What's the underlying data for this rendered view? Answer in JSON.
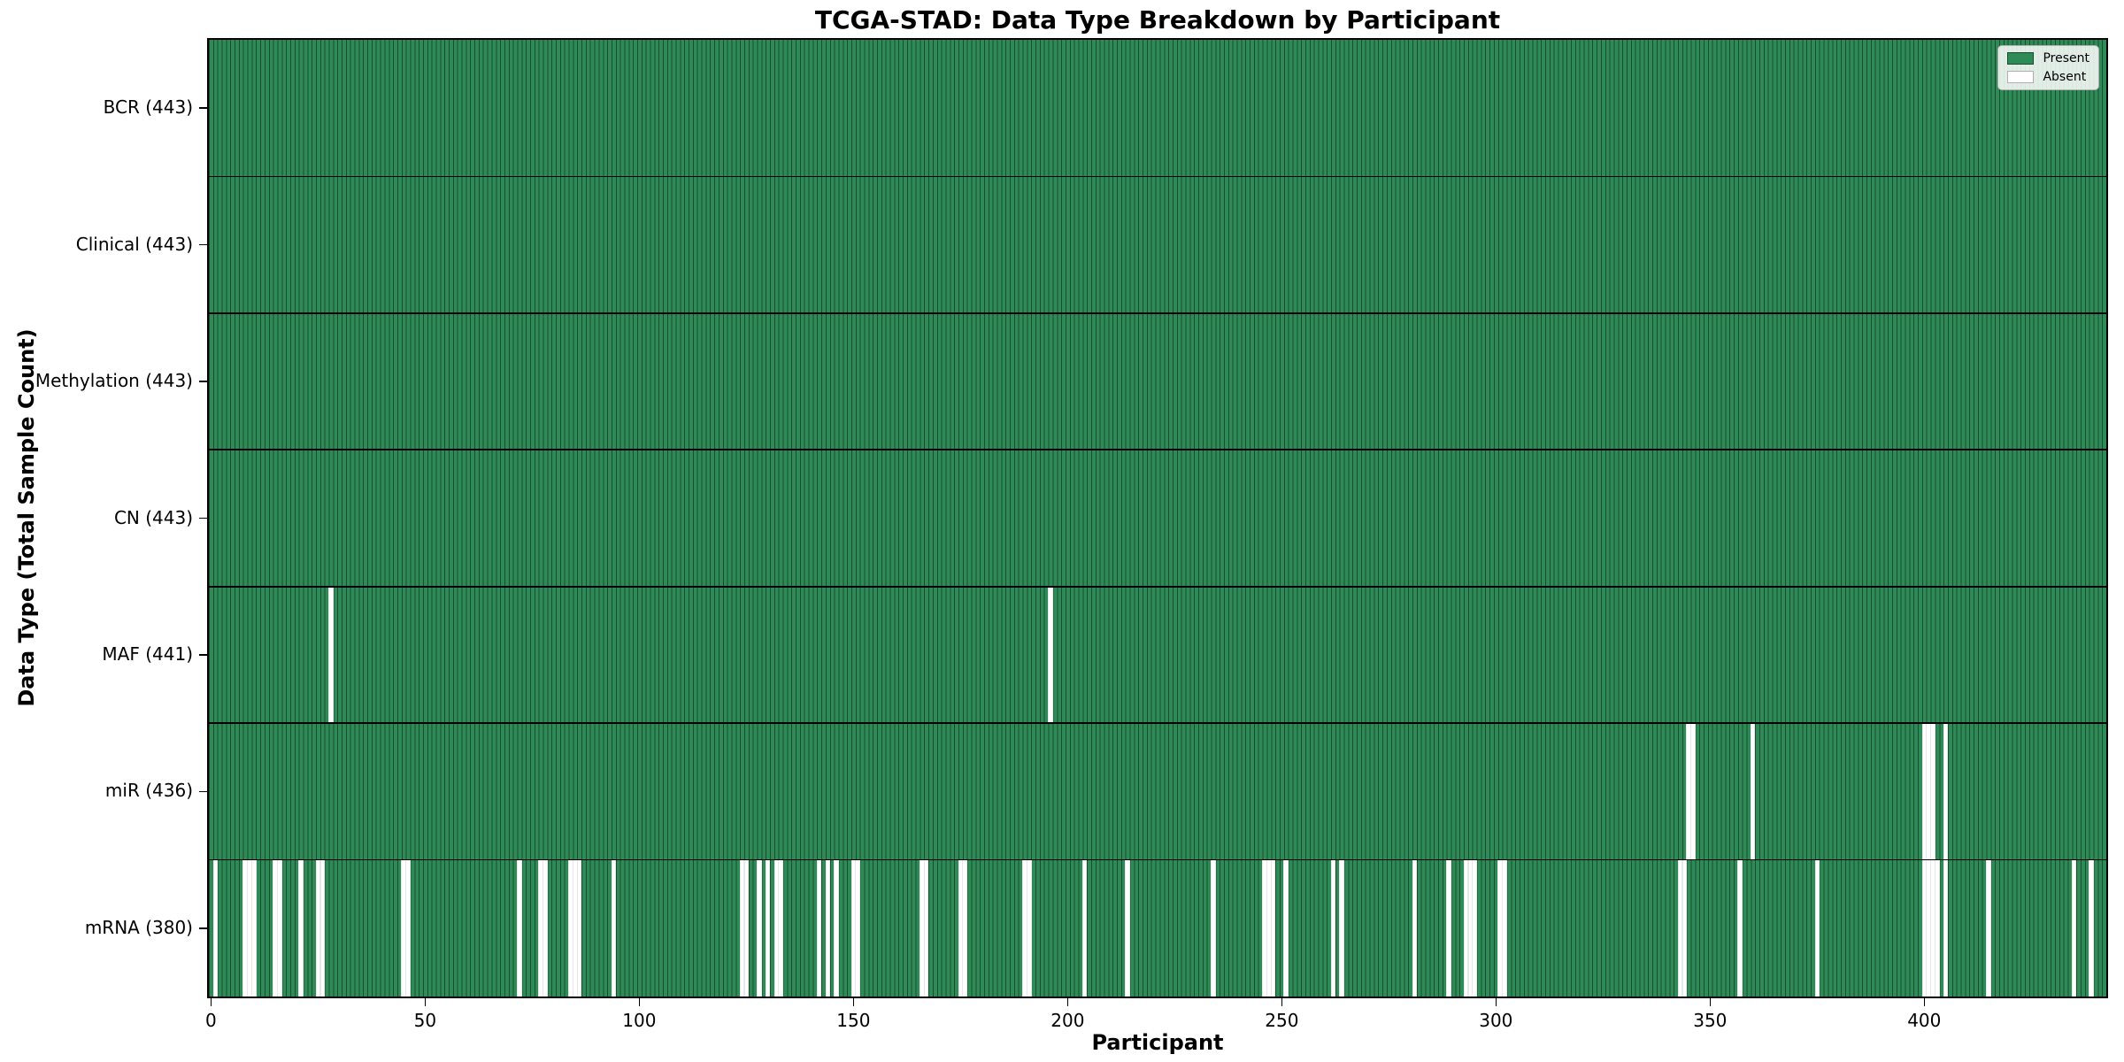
{
  "chart_data": {
    "type": "heatmap",
    "title": "TCGA-STAD: Data Type Breakdown by Participant",
    "xlabel": "Participant",
    "ylabel": "Data Type (Total Sample Count)",
    "n_participants": 443,
    "x_ticks": [
      0,
      50,
      100,
      150,
      200,
      250,
      300,
      350,
      400
    ],
    "legend": {
      "position": "upper right",
      "items": [
        {
          "label": "Present",
          "color": "#2e8b57"
        },
        {
          "label": "Absent",
          "color": "#ffffff"
        }
      ]
    },
    "colors": {
      "present": "#2e8b57",
      "bar_edge": "#1b4c2e",
      "absent": "#ffffff",
      "row_divider": "#000000",
      "plot_border": "#000000",
      "background": "#ffffff"
    },
    "rows": [
      {
        "data_type": "BCR",
        "label": "BCR (443)",
        "total": 443,
        "absent_participants": []
      },
      {
        "data_type": "Clinical",
        "label": "Clinical (443)",
        "total": 443,
        "absent_participants": []
      },
      {
        "data_type": "Methylation",
        "label": "Methylation (443)",
        "total": 443,
        "absent_participants": []
      },
      {
        "data_type": "CN",
        "label": "CN (443)",
        "total": 443,
        "absent_participants": []
      },
      {
        "data_type": "MAF",
        "label": "MAF (441)",
        "total": 441,
        "absent_participants": [
          28,
          196
        ]
      },
      {
        "data_type": "miR",
        "label": "miR (436)",
        "total": 436,
        "absent_participants": [
          345,
          346,
          360,
          400,
          401,
          402,
          405
        ]
      },
      {
        "data_type": "mRNA",
        "label": "mRNA (380)",
        "total": 380,
        "absent_participants": [
          1,
          8,
          9,
          10,
          15,
          16,
          21,
          25,
          26,
          45,
          46,
          72,
          77,
          78,
          84,
          85,
          86,
          94,
          124,
          125,
          128,
          130,
          132,
          133,
          142,
          144,
          146,
          150,
          151,
          166,
          167,
          175,
          176,
          190,
          191,
          204,
          214,
          234,
          246,
          247,
          248,
          251,
          262,
          264,
          281,
          289,
          293,
          294,
          295,
          301,
          302,
          343,
          344,
          357,
          375,
          400,
          401,
          402,
          403,
          405,
          415,
          435,
          439
        ]
      }
    ]
  }
}
